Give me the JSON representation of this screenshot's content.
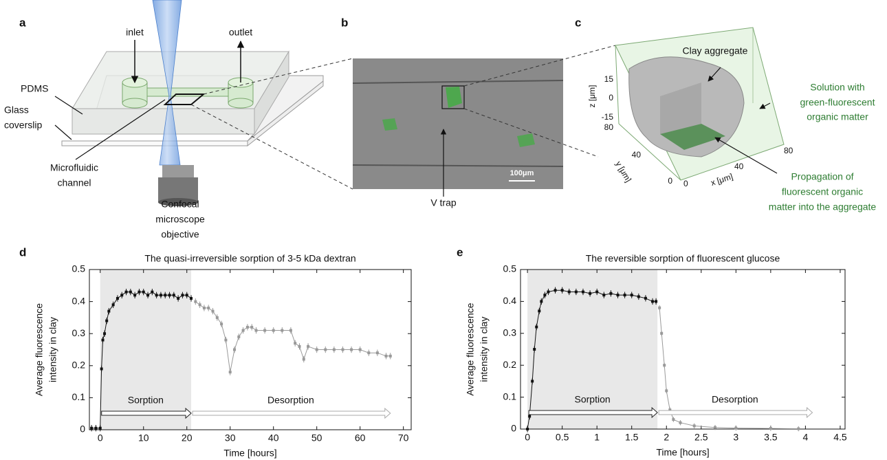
{
  "panel_labels": [
    "a",
    "b",
    "c",
    "d",
    "e"
  ],
  "panel_a": {
    "inlet": "inlet",
    "outlet": "outlet",
    "pdms": "PDMS",
    "coverslip": [
      "Glass",
      "coverslip"
    ],
    "channel": [
      "Microfluidic",
      "channel"
    ],
    "objective": [
      "Confocal",
      "microscope",
      "objective"
    ]
  },
  "panel_b": {
    "scale_bar": "100μm",
    "trap": "V trap"
  },
  "panel_c": {
    "aggregate": "Clay aggregate",
    "solution": [
      "Solution with",
      "green-fluorescent",
      "organic matter"
    ],
    "propagation": [
      "Propagation of",
      "fluorescent organic",
      "matter into the aggregate"
    ],
    "z_label": "z [μm]",
    "y_label": "y [μm]",
    "x_label": "x [μm]",
    "z_ticks": [
      "15",
      "0",
      "-15"
    ],
    "y_ticks": [
      "80",
      "40",
      "0"
    ],
    "x_ticks": [
      "0",
      "40",
      "80"
    ]
  },
  "chart_data": [
    {
      "type": "line",
      "title": "The quasi-irreversible sorption of 3-5 kDa dextran",
      "xlabel": "Time [hours]",
      "ylabel": [
        "Average fluorescence",
        "intensity in clay"
      ],
      "xlim": [
        -2.5,
        71.8
      ],
      "ylim": [
        0,
        0.5
      ],
      "xticks": [
        0,
        10,
        20,
        30,
        40,
        50,
        60,
        70
      ],
      "yticks": [
        0,
        0.1,
        0.2,
        0.3,
        0.4,
        0.5
      ],
      "spans": [
        {
          "label": "Sorption",
          "start": 0,
          "end": 21,
          "shaded": true
        },
        {
          "label": "Desorption",
          "start": 21,
          "end": 67,
          "shaded": false
        }
      ],
      "series": [
        {
          "color": "#111111",
          "error": 0.01,
          "x": [
            -2,
            -1,
            0,
            0.3,
            0.6,
            1,
            1.5,
            2,
            3,
            4,
            5,
            6,
            7,
            8,
            9,
            10,
            11,
            12,
            13,
            14,
            15,
            16,
            17,
            18,
            19,
            20,
            21
          ],
          "values": [
            0.005,
            0.005,
            0.005,
            0.19,
            0.28,
            0.3,
            0.34,
            0.37,
            0.39,
            0.41,
            0.42,
            0.43,
            0.43,
            0.42,
            0.43,
            0.43,
            0.42,
            0.43,
            0.42,
            0.42,
            0.42,
            0.42,
            0.42,
            0.41,
            0.42,
            0.42,
            0.41
          ]
        },
        {
          "color": "#999999",
          "error": 0.01,
          "x": [
            22,
            23,
            24,
            25,
            26,
            27,
            28,
            29,
            30,
            31,
            32,
            33,
            34,
            35,
            36,
            38,
            40,
            42,
            44,
            45,
            46,
            47,
            48,
            50,
            52,
            54,
            56,
            58,
            60,
            62,
            64,
            66,
            67
          ],
          "values": [
            0.4,
            0.39,
            0.38,
            0.38,
            0.37,
            0.35,
            0.33,
            0.28,
            0.18,
            0.25,
            0.29,
            0.31,
            0.32,
            0.32,
            0.31,
            0.31,
            0.31,
            0.31,
            0.31,
            0.27,
            0.26,
            0.22,
            0.26,
            0.25,
            0.25,
            0.25,
            0.25,
            0.25,
            0.25,
            0.24,
            0.24,
            0.23,
            0.23
          ]
        }
      ]
    },
    {
      "type": "line",
      "title": "The reversible sorption of fluorescent glucose",
      "xlabel": "Time [hours]",
      "ylabel": [
        "Average fluorescence",
        "intensity in clay"
      ],
      "xlim": [
        -0.1,
        4.57
      ],
      "ylim": [
        0,
        0.5
      ],
      "xticks": [
        0,
        0.5,
        1,
        1.5,
        2,
        2.5,
        3,
        3.5,
        4,
        4.5
      ],
      "yticks": [
        0,
        0.1,
        0.2,
        0.3,
        0.4,
        0.5
      ],
      "spans": [
        {
          "label": "Sorption",
          "start": 0,
          "end": 1.87,
          "shaded": true
        },
        {
          "label": "Desorption",
          "start": 1.87,
          "end": 4.1,
          "shaded": false
        }
      ],
      "series": [
        {
          "color": "#111111",
          "error": 0.01,
          "x": [
            0,
            0.03,
            0.07,
            0.1,
            0.13,
            0.17,
            0.2,
            0.25,
            0.3,
            0.4,
            0.5,
            0.6,
            0.7,
            0.8,
            0.9,
            1,
            1.1,
            1.2,
            1.3,
            1.4,
            1.5,
            1.6,
            1.7,
            1.8,
            1.85
          ],
          "values": [
            0,
            0.04,
            0.15,
            0.25,
            0.32,
            0.37,
            0.4,
            0.42,
            0.43,
            0.435,
            0.435,
            0.43,
            0.43,
            0.43,
            0.425,
            0.43,
            0.42,
            0.425,
            0.42,
            0.42,
            0.42,
            0.415,
            0.41,
            0.4,
            0.4
          ]
        },
        {
          "color": "#999999",
          "error": 0.008,
          "x": [
            1.9,
            1.93,
            1.97,
            2,
            2.05,
            2.1,
            2.2,
            2.4,
            2.7,
            3,
            3.5,
            3.9
          ],
          "values": [
            0.38,
            0.3,
            0.2,
            0.12,
            0.06,
            0.03,
            0.02,
            0.01,
            0.005,
            0.003,
            0.002,
            0.001
          ]
        }
      ]
    }
  ]
}
